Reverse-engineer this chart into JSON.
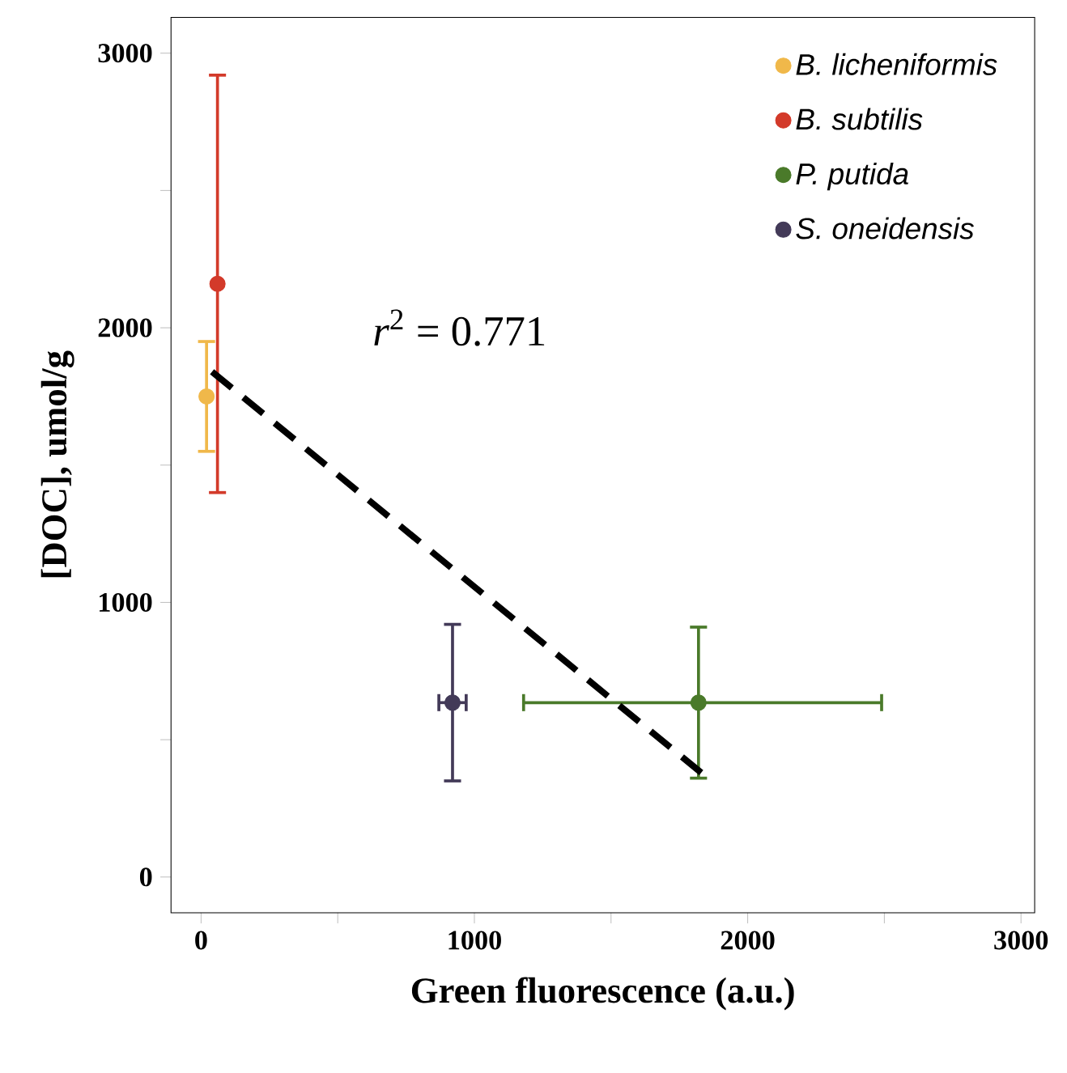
{
  "chart_data": {
    "type": "scatter",
    "xlabel": "Green fluorescence (a.u.)",
    "ylabel": "[DOC], umol/g",
    "xlim": [
      -110,
      3050
    ],
    "ylim": [
      -130,
      3130
    ],
    "xticks": [
      0,
      {
        "value": 500,
        "label": null
      },
      1000,
      {
        "value": 1500,
        "label": null
      },
      2000,
      {
        "value": 2500,
        "label": null
      },
      3000
    ],
    "yticks": [
      0,
      {
        "value": 500,
        "label": null
      },
      1000,
      {
        "value": 1500,
        "label": null
      },
      2000,
      {
        "value": 2500,
        "label": null
      },
      3000
    ],
    "legend": "top right",
    "grid": false,
    "annotations": [
      {
        "text": "*r*$^{2}$ = 0.771"
      }
    ],
    "series": [
      {
        "name": "B. licheniformis",
        "color": "#f0b84a",
        "marker": "circle",
        "x": [
          20
        ],
        "values": [
          1750
        ],
        "errors": [
          [
            1550,
            1950
          ]
        ],
        "xerrors": [
          null
        ]
      },
      {
        "name": "B. subtilis",
        "color": "#d33a2a",
        "marker": "circle",
        "x": [
          60
        ],
        "values": [
          2160
        ],
        "errors": [
          [
            1400,
            2920
          ]
        ],
        "xerrors": [
          null
        ]
      },
      {
        "name": "P. putida",
        "color": "#4a7a2a",
        "marker": "circle",
        "x": [
          1820
        ],
        "values": [
          635
        ],
        "errors": [
          [
            360,
            910
          ]
        ],
        "xerrors": [
          [
            1180,
            2490
          ]
        ]
      },
      {
        "name": "S. oneidensis",
        "color": "#433a58",
        "marker": "circle",
        "x": [
          920
        ],
        "values": [
          635
        ],
        "errors": [
          [
            350,
            920
          ]
        ],
        "xerrors": [
          [
            870,
            970
          ]
        ]
      },
      {
        "type": "line",
        "color": "#000000",
        "line_style": "dashed",
        "marker": "none",
        "x": [
          40,
          1830
        ],
        "values": [
          1840,
          380
        ]
      }
    ]
  }
}
